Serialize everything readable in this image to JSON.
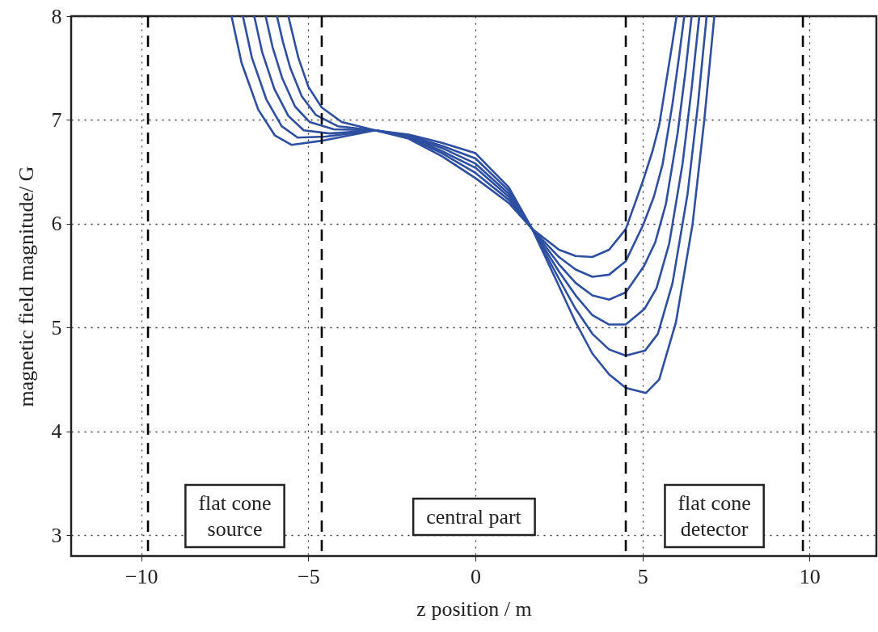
{
  "chart_data": {
    "type": "line",
    "xlabel": "z position / m",
    "ylabel": "magnetic field magnitude/ G",
    "xlim": [
      -12.1,
      12
    ],
    "ylim": [
      2.8,
      8
    ],
    "xticks": [
      -10,
      -5,
      0,
      5,
      10
    ],
    "yticks": [
      3,
      4,
      5,
      6,
      7,
      8
    ],
    "grid": true,
    "series": [
      {
        "color": "#2e4fa0",
        "x": [
          -7.3,
          -7.0,
          -6.5,
          -6.0,
          -5.5,
          -4.6,
          -3,
          -2,
          -1,
          0,
          1,
          1.7,
          2.5,
          3,
          3.5,
          4,
          4.5,
          5.1,
          5.5,
          6.0,
          6.5,
          6.85,
          7.15
        ],
        "values": [
          8.0,
          7.55,
          7.1,
          6.85,
          6.76,
          6.8,
          6.9,
          6.86,
          6.78,
          6.68,
          6.35,
          5.95,
          5.4,
          5.05,
          4.75,
          4.55,
          4.42,
          4.37,
          4.5,
          5.05,
          6.0,
          7.0,
          8.0
        ]
      },
      {
        "color": "#2e4fa0",
        "x": [
          -6.96,
          -6.69,
          -6.26,
          -5.8,
          -5.32,
          -4.48,
          -3,
          -2,
          -1,
          0,
          1,
          1.7,
          2.5,
          3,
          3.5,
          4,
          4.5,
          5.08,
          5.46,
          5.9,
          6.35,
          6.66,
          6.92
        ],
        "values": [
          8.0,
          7.6,
          7.2,
          6.94,
          6.83,
          6.84,
          6.9,
          6.85,
          6.75,
          6.63,
          6.32,
          5.95,
          5.47,
          5.18,
          4.94,
          4.79,
          4.73,
          4.78,
          4.94,
          5.43,
          6.29,
          7.15,
          8.0
        ]
      },
      {
        "color": "#2e4fa0",
        "x": [
          -6.62,
          -6.38,
          -6.02,
          -5.6,
          -5.14,
          -4.36,
          -3,
          -2,
          -1,
          0,
          1,
          1.7,
          2.5,
          3,
          3.5,
          4,
          4.5,
          5.06,
          5.42,
          5.8,
          6.2,
          6.47,
          6.7
        ],
        "values": [
          8.0,
          7.65,
          7.3,
          7.04,
          6.9,
          6.87,
          6.9,
          6.84,
          6.73,
          6.58,
          6.29,
          5.95,
          5.54,
          5.31,
          5.12,
          5.03,
          5.03,
          5.18,
          5.38,
          5.81,
          6.58,
          7.3,
          8.0
        ]
      },
      {
        "color": "#2e4fa0",
        "x": [
          -6.28,
          -6.07,
          -5.78,
          -5.4,
          -4.96,
          -4.24,
          -3,
          -2,
          -1,
          0,
          1,
          1.7,
          2.5,
          3,
          3.5,
          4,
          4.5,
          5.04,
          5.38,
          5.7,
          6.05,
          6.28,
          6.47
        ],
        "values": [
          8.0,
          7.7,
          7.4,
          7.13,
          6.98,
          6.91,
          6.9,
          6.84,
          6.7,
          6.54,
          6.26,
          5.95,
          5.61,
          5.43,
          5.31,
          5.27,
          5.34,
          5.59,
          5.82,
          6.19,
          6.87,
          7.45,
          8.0
        ]
      },
      {
        "color": "#2e4fa0",
        "x": [
          -5.94,
          -5.76,
          -5.54,
          -5.2,
          -4.78,
          -4.12,
          -3,
          -2,
          -1,
          0,
          1,
          1.7,
          2.5,
          3,
          3.5,
          4,
          4.5,
          5.02,
          5.34,
          5.6,
          5.9,
          6.09,
          6.25
        ],
        "values": [
          8.0,
          7.75,
          7.5,
          7.23,
          7.05,
          6.94,
          6.9,
          6.83,
          6.68,
          6.49,
          6.23,
          5.95,
          5.68,
          5.56,
          5.49,
          5.51,
          5.64,
          5.99,
          6.26,
          6.57,
          7.16,
          7.6,
          8.0
        ]
      },
      {
        "color": "#2e4fa0",
        "x": [
          -5.6,
          -5.45,
          -5.3,
          -5.0,
          -4.6,
          -4.0,
          -3,
          -2,
          -1,
          0,
          1,
          1.7,
          2.5,
          3,
          3.5,
          4,
          4.5,
          5.0,
          5.3,
          5.5,
          5.75,
          5.9,
          6.02
        ],
        "values": [
          8.0,
          7.8,
          7.6,
          7.32,
          7.12,
          6.98,
          6.9,
          6.82,
          6.65,
          6.44,
          6.2,
          5.95,
          5.75,
          5.69,
          5.68,
          5.75,
          5.95,
          6.4,
          6.7,
          6.95,
          7.45,
          7.75,
          8.0
        ]
      }
    ],
    "ref_lines": [
      {
        "axis": "x",
        "value": -9.8,
        "color": "#000000",
        "line_style": "dashed"
      },
      {
        "axis": "x",
        "value": -4.6,
        "color": "#000000",
        "line_style": "dashed"
      },
      {
        "axis": "x",
        "value": 4.5,
        "color": "#000000",
        "line_style": "dashed"
      },
      {
        "axis": "x",
        "value": 9.8,
        "color": "#000000",
        "line_style": "dashed"
      }
    ],
    "annotations": [
      "flat cone\nsource",
      "central part",
      "flat cone\ndetector"
    ]
  }
}
